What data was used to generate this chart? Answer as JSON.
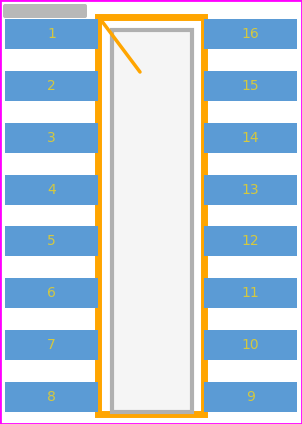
{
  "bg_color": "#ffffff",
  "border_color": "#ff00ff",
  "pin_pad_color": "#5b9bd5",
  "pin_text_color": "#d4c840",
  "body_border_color": "#ffa500",
  "body_fill_color": "#ffffff",
  "ic_border_color": "#b0b0b0",
  "ic_fill_color": "#f5f5f5",
  "notch_color": "#ffa500",
  "ref_bar_color": "#b8b8b8",
  "left_pins": [
    1,
    2,
    3,
    4,
    5,
    6,
    7,
    8
  ],
  "right_pins": [
    16,
    15,
    14,
    13,
    12,
    11,
    10,
    9
  ],
  "fig_width": 3.02,
  "fig_height": 4.24,
  "dpi": 100
}
